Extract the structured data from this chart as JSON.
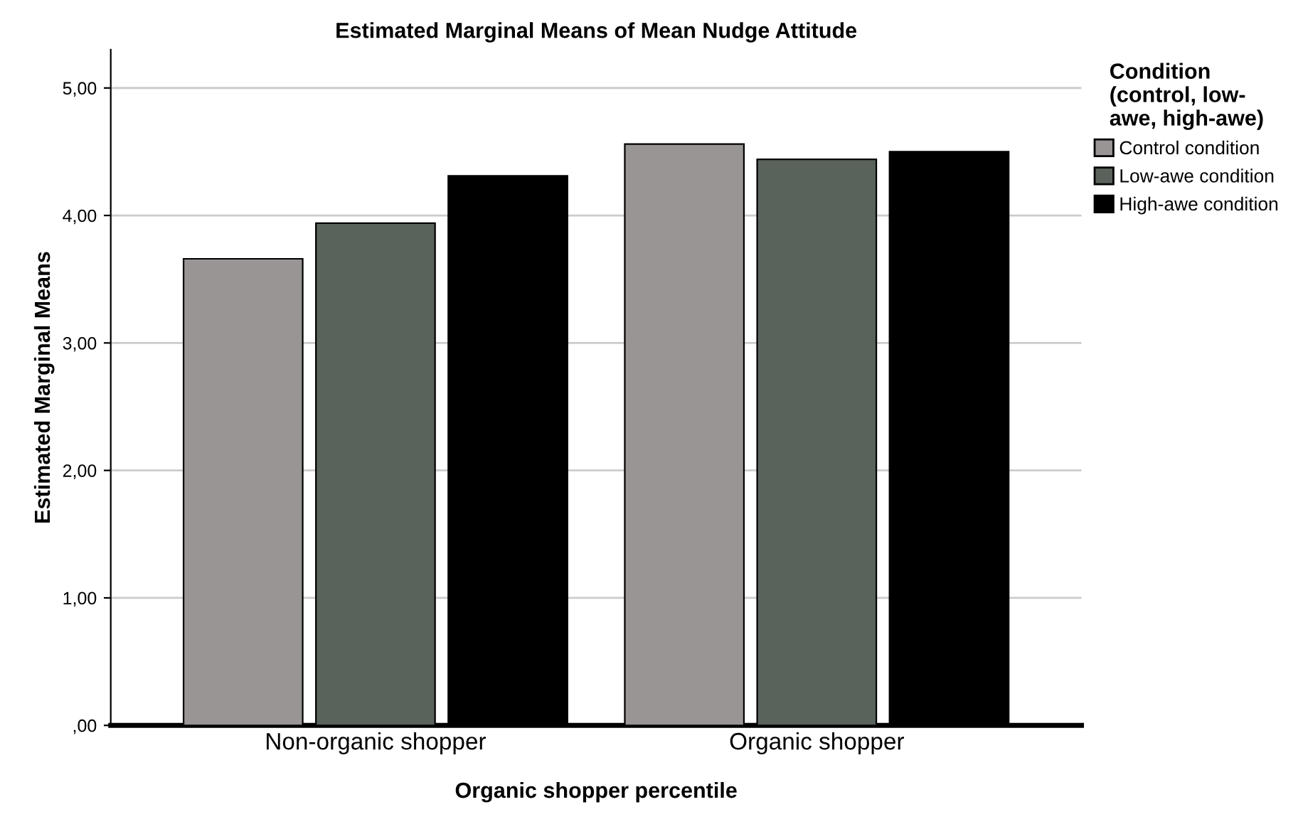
{
  "chart_data": {
    "type": "bar",
    "title": "Estimated Marginal Means of Mean Nudge Attitude",
    "xlabel": "Organic shopper percentile",
    "ylabel": "Estimated Marginal Means",
    "legend_title": "Condition\n(control, low-\nawe, high-awe)",
    "categories": [
      "Non-organic shopper",
      "Organic shopper"
    ],
    "series": [
      {
        "name": "Control condition",
        "color": "#9a9595",
        "values": [
          3.66,
          4.56
        ]
      },
      {
        "name": "Low-awe condition",
        "color": "#5a625c",
        "values": [
          3.94,
          4.44
        ]
      },
      {
        "name": "High-awe condition",
        "color": "#000000",
        "values": [
          4.31,
          4.5
        ]
      }
    ],
    "ylim": [
      0,
      5.3
    ],
    "yticks": [
      {
        "value": 0,
        "label": ",00"
      },
      {
        "value": 1,
        "label": "1,00"
      },
      {
        "value": 2,
        "label": "2,00"
      },
      {
        "value": 3,
        "label": "3,00"
      },
      {
        "value": 4,
        "label": "4,00"
      },
      {
        "value": 5,
        "label": "5,00"
      }
    ],
    "grid": "y",
    "legend": "right"
  }
}
